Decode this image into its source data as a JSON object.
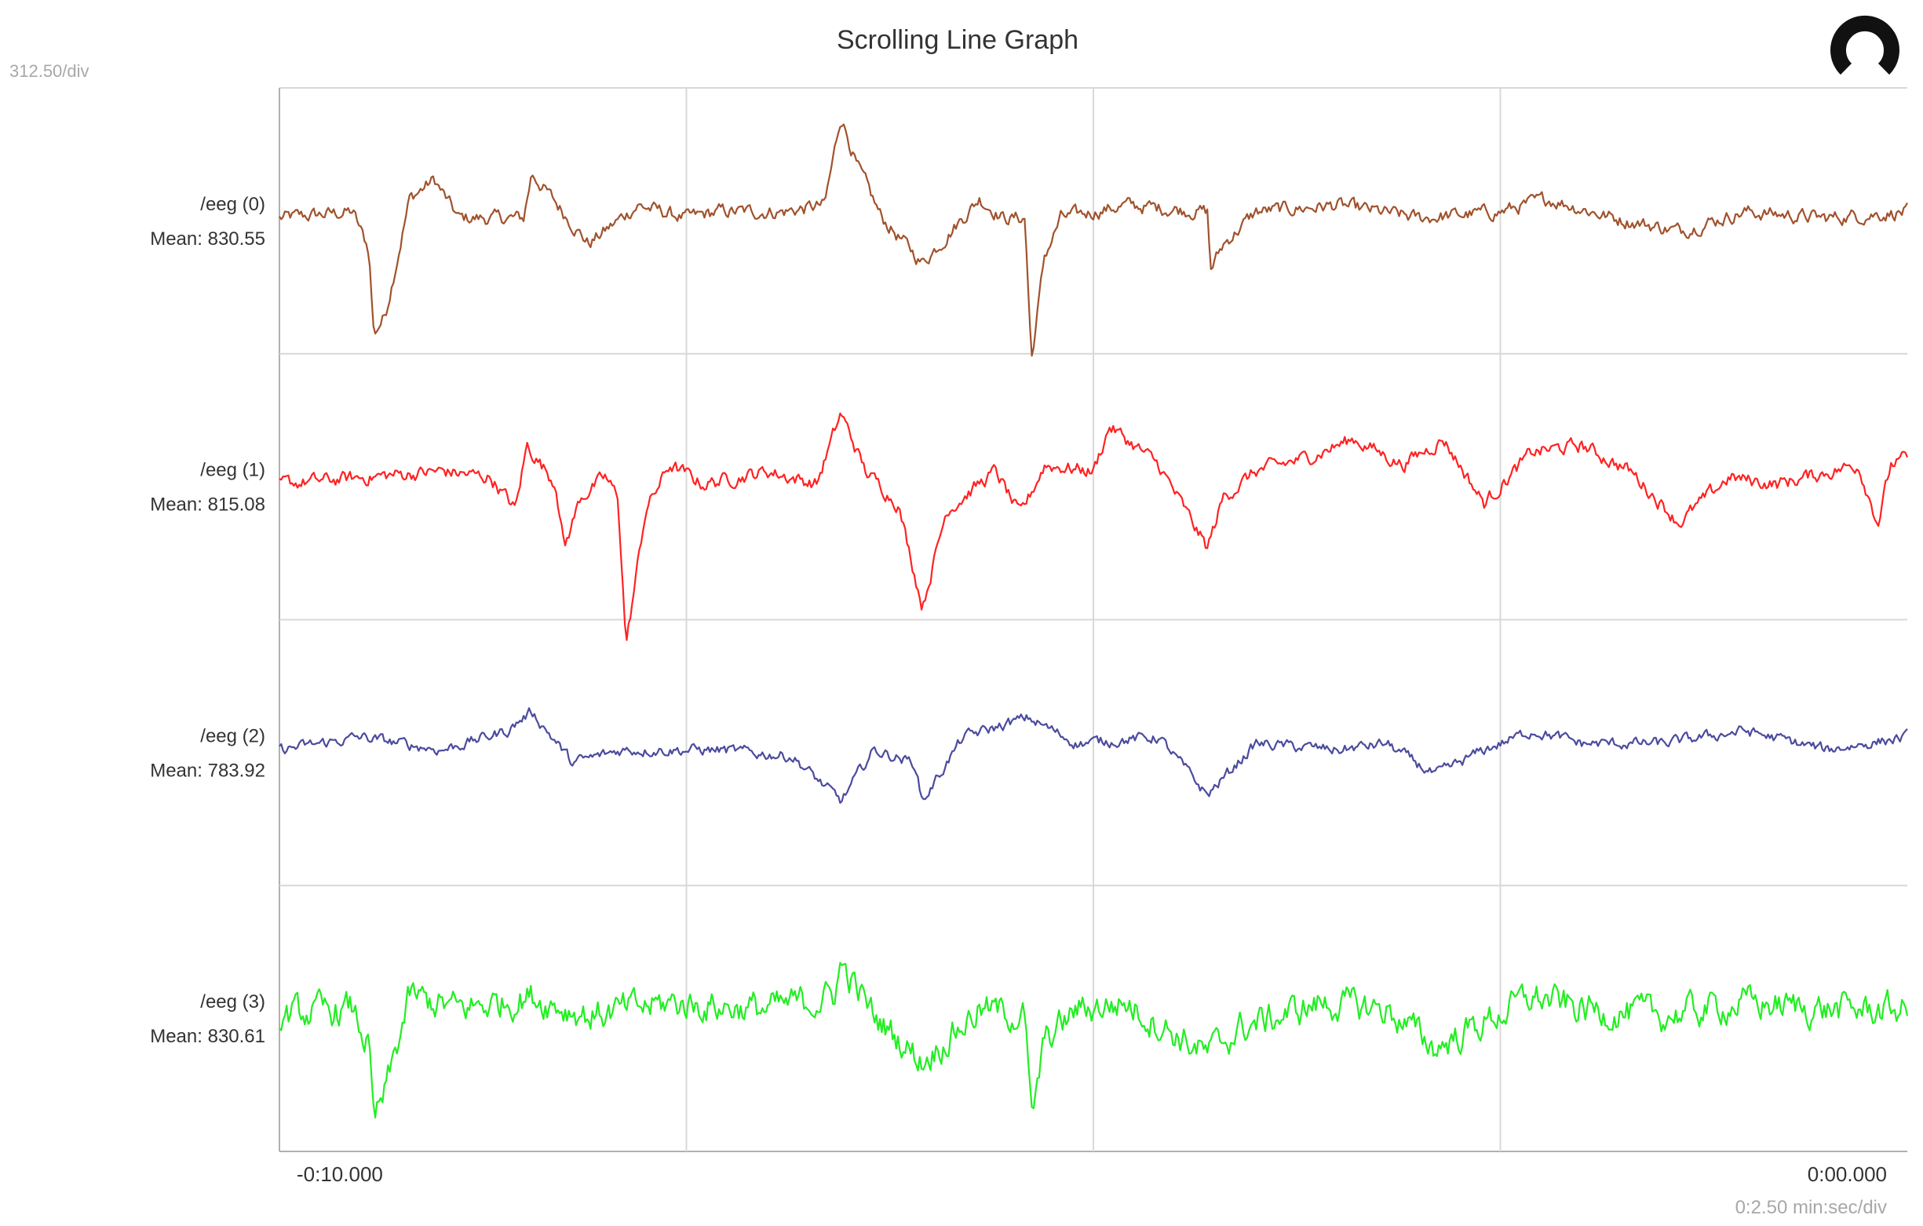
{
  "title": "Scrolling Line Graph",
  "y_scale_label": "312.50/div",
  "x_scale_label": "0:2.50 min:sec/div",
  "logo_icon": "circle-gap-logo-icon",
  "colors": {
    "background": "#ffffff",
    "grid": "#d8d8d8",
    "axis": "#b0b0b0",
    "text": "#333333",
    "scale_text": "#a8a8a8"
  },
  "chart_data": {
    "type": "line",
    "title": "Scrolling Line Graph",
    "x_tick_labels": [
      "-0:10.000",
      "0:00.000"
    ],
    "xlim": [
      -10,
      0
    ],
    "x_unit": "seconds",
    "grid": true,
    "series": [
      {
        "name": "/eeg (0)",
        "mean_label": "Mean: 830.55",
        "color": "#a0522d",
        "noise": 0.9,
        "baseline": 0,
        "points": [
          [
            -10.0,
            0
          ],
          [
            -9.55,
            10
          ],
          [
            -9.45,
            -50
          ],
          [
            -9.42,
            -180
          ],
          [
            -9.35,
            -150
          ],
          [
            -9.2,
            30
          ],
          [
            -9.05,
            60
          ],
          [
            -8.9,
            0
          ],
          [
            -8.5,
            0
          ],
          [
            -8.45,
            70
          ],
          [
            -8.1,
            -40
          ],
          [
            -7.8,
            20
          ],
          [
            -7.5,
            0
          ],
          [
            -7.3,
            10
          ],
          [
            -6.9,
            10
          ],
          [
            -6.65,
            20
          ],
          [
            -6.55,
            160
          ],
          [
            -6.45,
            80
          ],
          [
            -6.3,
            0
          ],
          [
            -6.05,
            -70
          ],
          [
            -5.7,
            30
          ],
          [
            -5.55,
            0
          ],
          [
            -5.42,
            0
          ],
          [
            -5.38,
            -220
          ],
          [
            -5.3,
            -60
          ],
          [
            -5.2,
            0
          ],
          [
            -4.8,
            20
          ],
          [
            -4.3,
            10
          ],
          [
            -4.28,
            -80
          ],
          [
            -4.2,
            -40
          ],
          [
            -4.0,
            10
          ],
          [
            -3.5,
            20
          ],
          [
            -3.0,
            0
          ],
          [
            -2.5,
            10
          ],
          [
            -2.2,
            30
          ],
          [
            -1.8,
            0
          ],
          [
            -1.4,
            -20
          ],
          [
            -1.0,
            10
          ],
          [
            -0.5,
            0
          ],
          [
            0.0,
            10
          ]
        ]
      },
      {
        "name": "/eeg (1)",
        "mean_label": "Mean: 815.08",
        "color": "#ff2222",
        "noise": 0.9,
        "baseline": 0,
        "points": [
          [
            -10.0,
            0
          ],
          [
            -9.5,
            10
          ],
          [
            -9.0,
            20
          ],
          [
            -8.7,
            10
          ],
          [
            -8.55,
            -40
          ],
          [
            -8.48,
            60
          ],
          [
            -8.3,
            0
          ],
          [
            -8.25,
            -100
          ],
          [
            -8.15,
            -20
          ],
          [
            -8.0,
            10
          ],
          [
            -7.92,
            -20
          ],
          [
            -7.87,
            -250
          ],
          [
            -7.75,
            -40
          ],
          [
            -7.6,
            30
          ],
          [
            -7.4,
            0
          ],
          [
            -7.0,
            20
          ],
          [
            -6.7,
            0
          ],
          [
            -6.55,
            110
          ],
          [
            -6.4,
            20
          ],
          [
            -6.2,
            -30
          ],
          [
            -6.05,
            -190
          ],
          [
            -5.9,
            -40
          ],
          [
            -5.6,
            20
          ],
          [
            -5.45,
            -50
          ],
          [
            -5.3,
            30
          ],
          [
            -5.0,
            20
          ],
          [
            -4.9,
            90
          ],
          [
            -4.6,
            30
          ],
          [
            -4.3,
            -100
          ],
          [
            -4.2,
            -20
          ],
          [
            -4.0,
            20
          ],
          [
            -3.7,
            40
          ],
          [
            -3.4,
            70
          ],
          [
            -3.1,
            30
          ],
          [
            -2.85,
            70
          ],
          [
            -2.6,
            -30
          ],
          [
            -2.3,
            50
          ],
          [
            -2.0,
            60
          ],
          [
            -1.7,
            20
          ],
          [
            -1.4,
            -60
          ],
          [
            -1.1,
            10
          ],
          [
            -0.8,
            0
          ],
          [
            -0.3,
            30
          ],
          [
            -0.18,
            -60
          ],
          [
            -0.1,
            30
          ],
          [
            0.0,
            40
          ]
        ]
      },
      {
        "name": "/eeg (2)",
        "mean_label": "Mean: 783.92",
        "color": "#4b4b9e",
        "noise": 0.7,
        "baseline": 0,
        "points": [
          [
            -10.0,
            0
          ],
          [
            -9.5,
            20
          ],
          [
            -9.0,
            0
          ],
          [
            -8.6,
            30
          ],
          [
            -8.45,
            60
          ],
          [
            -8.2,
            -20
          ],
          [
            -7.9,
            0
          ],
          [
            -7.3,
            0
          ],
          [
            -6.85,
            -10
          ],
          [
            -6.55,
            -80
          ],
          [
            -6.35,
            0
          ],
          [
            -6.1,
            -20
          ],
          [
            -6.05,
            -80
          ],
          [
            -5.8,
            20
          ],
          [
            -5.4,
            50
          ],
          [
            -5.1,
            10
          ],
          [
            -4.6,
            20
          ],
          [
            -4.3,
            -70
          ],
          [
            -4.0,
            10
          ],
          [
            -3.5,
            0
          ],
          [
            -3.2,
            10
          ],
          [
            -2.9,
            -40
          ],
          [
            -2.6,
            0
          ],
          [
            -2.3,
            30
          ],
          [
            -2.0,
            10
          ],
          [
            -1.5,
            10
          ],
          [
            -1.0,
            30
          ],
          [
            -0.5,
            0
          ],
          [
            0.0,
            20
          ]
        ]
      },
      {
        "name": "/eeg (3)",
        "mean_label": "Mean: 830.61",
        "color": "#22ee22",
        "noise": 2.0,
        "baseline": 0,
        "points": [
          [
            -10.0,
            0
          ],
          [
            -9.55,
            10
          ],
          [
            -9.45,
            -50
          ],
          [
            -9.42,
            -170
          ],
          [
            -9.35,
            -120
          ],
          [
            -9.2,
            30
          ],
          [
            -8.9,
            10
          ],
          [
            -8.45,
            30
          ],
          [
            -8.1,
            0
          ],
          [
            -7.6,
            20
          ],
          [
            -7.0,
            10
          ],
          [
            -6.6,
            30
          ],
          [
            -6.55,
            80
          ],
          [
            -6.35,
            0
          ],
          [
            -6.05,
            -70
          ],
          [
            -5.7,
            10
          ],
          [
            -5.42,
            0
          ],
          [
            -5.38,
            -170
          ],
          [
            -5.3,
            -40
          ],
          [
            -5.1,
            10
          ],
          [
            -4.8,
            20
          ],
          [
            -4.3,
            -60
          ],
          [
            -4.1,
            -20
          ],
          [
            -3.6,
            20
          ],
          [
            -3.2,
            10
          ],
          [
            -2.9,
            -50
          ],
          [
            -2.6,
            -10
          ],
          [
            -2.3,
            30
          ],
          [
            -2.0,
            10
          ],
          [
            -1.5,
            0
          ],
          [
            -1.0,
            20
          ],
          [
            -0.5,
            10
          ],
          [
            0.0,
            10
          ]
        ]
      }
    ]
  }
}
